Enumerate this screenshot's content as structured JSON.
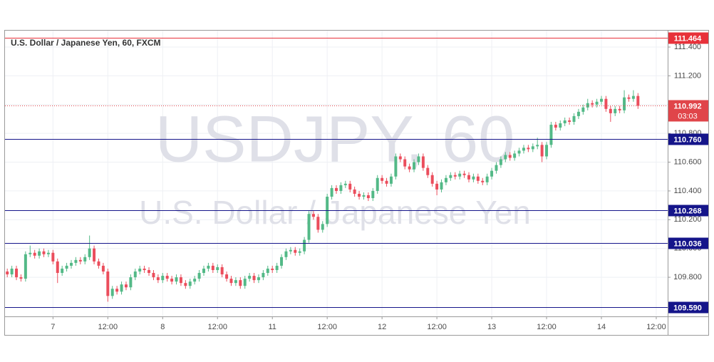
{
  "chart_data": {
    "type": "candlestick",
    "title": "U.S. Dollar / Japanese Yen, 60, FXCM",
    "watermark_symbol": "USDJPY, 60",
    "watermark_name": "U.S. Dollar / Japanese Yen",
    "up_color": "#53b987",
    "down_color": "#eb4d5c",
    "grid": true,
    "xlim": [
      -0.5,
      144.5
    ],
    "ylim": [
      109.528,
      111.514
    ],
    "xticks": [
      {
        "value": 10,
        "label": "7"
      },
      {
        "value": 22,
        "label": "12:00"
      },
      {
        "value": 34,
        "label": "8"
      },
      {
        "value": 46,
        "label": "12:00"
      },
      {
        "value": 58,
        "label": "11"
      },
      {
        "value": 70,
        "label": "12:00"
      },
      {
        "value": 82,
        "label": "12"
      },
      {
        "value": 94,
        "label": "12:00"
      },
      {
        "value": 106,
        "label": "13"
      },
      {
        "value": 118,
        "label": "12:00"
      },
      {
        "value": 130,
        "label": "14"
      },
      {
        "value": 142,
        "label": "12:00"
      }
    ],
    "yticks": [
      {
        "value": 109.8,
        "label": "109.800"
      },
      {
        "value": 110,
        "label": "110.000"
      },
      {
        "value": 110.2,
        "label": "110.200"
      },
      {
        "value": 110.4,
        "label": "110.400"
      },
      {
        "value": 110.6,
        "label": "110.600"
      },
      {
        "value": 110.8,
        "label": "110.800"
      },
      {
        "value": 111,
        "label": "111.000"
      },
      {
        "value": 111.2,
        "label": "111.200"
      },
      {
        "value": 111.4,
        "label": "111.400"
      }
    ],
    "levels": [
      {
        "value": 111.464,
        "label": "111.464",
        "color": "#e8313a"
      },
      {
        "value": 110.76,
        "label": "110.760",
        "color": "#15158a"
      },
      {
        "value": 110.268,
        "label": "110.268",
        "color": "#15158a"
      },
      {
        "value": 110.036,
        "label": "110.036",
        "color": "#15158a"
      },
      {
        "value": 109.59,
        "label": "109.590",
        "color": "#15158a"
      }
    ],
    "current_price": {
      "value": 110.992,
      "label": "110.992",
      "countdown": "03:03",
      "color": "#e0454a"
    },
    "open": [
      109.84,
      109.82,
      109.86,
      109.8,
      109.79,
      109.96,
      109.97,
      109.95,
      109.98,
      109.96,
      109.97,
      109.91,
      109.83,
      109.86,
      109.88,
      109.9,
      109.92,
      109.91,
      109.94,
      110.0,
      109.91,
      109.88,
      109.84,
      109.67,
      109.72,
      109.7,
      109.75,
      109.73,
      109.8,
      109.84,
      109.86,
      109.85,
      109.83,
      109.8,
      109.78,
      109.81,
      109.79,
      109.77,
      109.8,
      109.76,
      109.74,
      109.77,
      109.79,
      109.83,
      109.86,
      109.88,
      109.85,
      109.87,
      109.82,
      109.79,
      109.76,
      109.78,
      109.74,
      109.79,
      109.81,
      109.78,
      109.8,
      109.83,
      109.86,
      109.85,
      109.88,
      109.94,
      109.98,
      109.99,
      109.97,
      109.98,
      110.06,
      110.24,
      110.22,
      110.13,
      110.17,
      110.36,
      110.42,
      110.4,
      110.44,
      110.45,
      110.41,
      110.38,
      110.36,
      110.37,
      110.35,
      110.4,
      110.49,
      110.47,
      110.45,
      110.5,
      110.64,
      110.62,
      110.57,
      110.55,
      110.6,
      110.64,
      110.56,
      110.51,
      110.45,
      110.41,
      110.46,
      110.49,
      110.51,
      110.5,
      110.52,
      110.51,
      110.48,
      110.5,
      110.47,
      110.46,
      110.5,
      110.54,
      110.58,
      110.62,
      110.65,
      110.63,
      110.66,
      110.68,
      110.7,
      110.69,
      110.71,
      110.72,
      110.64,
      110.72,
      110.86,
      110.84,
      110.87,
      110.89,
      110.88,
      110.92,
      110.95,
      110.98,
      111.01,
      111.0,
      111.02,
      111.04,
      110.97,
      110.94,
      110.97,
      110.96,
      111.05,
      111.04,
      111.06
    ],
    "high": [
      109.86,
      109.88,
      109.88,
      109.82,
      109.98,
      110.02,
      109.99,
      110.0,
      110.0,
      109.99,
      109.99,
      109.93,
      109.88,
      109.9,
      109.92,
      109.94,
      109.94,
      109.96,
      110.09,
      110.02,
      109.93,
      109.9,
      109.86,
      109.74,
      109.74,
      109.77,
      109.77,
      109.82,
      109.86,
      109.88,
      109.88,
      109.87,
      109.85,
      109.82,
      109.83,
      109.83,
      109.81,
      109.82,
      109.82,
      109.78,
      109.79,
      109.81,
      109.85,
      109.88,
      109.9,
      109.9,
      109.89,
      109.89,
      109.84,
      109.81,
      109.8,
      109.8,
      109.81,
      109.83,
      109.83,
      109.82,
      109.85,
      109.88,
      109.88,
      109.9,
      109.96,
      110.0,
      110.01,
      110.01,
      110.0,
      110.08,
      110.26,
      110.26,
      110.24,
      110.19,
      110.38,
      110.44,
      110.44,
      110.46,
      110.47,
      110.47,
      110.43,
      110.4,
      110.39,
      110.39,
      110.42,
      110.51,
      110.51,
      110.49,
      110.52,
      110.66,
      110.66,
      110.64,
      110.59,
      110.62,
      110.66,
      110.66,
      110.58,
      110.53,
      110.47,
      110.48,
      110.51,
      110.53,
      110.53,
      110.54,
      110.54,
      110.53,
      110.52,
      110.52,
      110.49,
      110.52,
      110.56,
      110.6,
      110.64,
      110.67,
      110.67,
      110.68,
      110.7,
      110.72,
      110.72,
      110.73,
      110.77,
      110.74,
      110.74,
      110.88,
      110.88,
      110.89,
      110.91,
      110.91,
      110.94,
      110.97,
      111.0,
      111.04,
      111.03,
      111.04,
      111.06,
      111.06,
      110.99,
      110.99,
      110.99,
      111.1,
      111.07,
      111.1,
      111.08
    ],
    "low": [
      109.8,
      109.8,
      109.78,
      109.77,
      109.77,
      109.94,
      109.93,
      109.93,
      109.94,
      109.94,
      109.89,
      109.76,
      109.81,
      109.84,
      109.86,
      109.88,
      109.89,
      109.89,
      109.92,
      109.89,
      109.86,
      109.82,
      109.63,
      109.65,
      109.68,
      109.68,
      109.71,
      109.71,
      109.78,
      109.82,
      109.83,
      109.81,
      109.78,
      109.76,
      109.76,
      109.77,
      109.75,
      109.75,
      109.74,
      109.72,
      109.72,
      109.75,
      109.77,
      109.81,
      109.84,
      109.83,
      109.83,
      109.8,
      109.77,
      109.74,
      109.74,
      109.72,
      109.72,
      109.77,
      109.76,
      109.76,
      109.78,
      109.81,
      109.83,
      109.83,
      109.86,
      109.92,
      109.96,
      109.95,
      109.95,
      109.96,
      110.04,
      110.2,
      110.11,
      110.11,
      110.15,
      110.34,
      110.38,
      110.38,
      110.42,
      110.39,
      110.36,
      110.34,
      110.34,
      110.33,
      110.33,
      110.38,
      110.45,
      110.43,
      110.43,
      110.48,
      110.6,
      110.55,
      110.53,
      110.53,
      110.58,
      110.54,
      110.49,
      110.43,
      110.37,
      110.39,
      110.44,
      110.47,
      110.48,
      110.48,
      110.49,
      110.46,
      110.46,
      110.45,
      110.44,
      110.44,
      110.48,
      110.52,
      110.56,
      110.6,
      110.61,
      110.61,
      110.64,
      110.66,
      110.67,
      110.67,
      110.69,
      110.6,
      110.62,
      110.7,
      110.82,
      110.82,
      110.85,
      110.86,
      110.86,
      110.9,
      110.93,
      110.96,
      110.98,
      110.98,
      111.0,
      110.95,
      110.88,
      110.92,
      110.94,
      110.94,
      111.02,
      111.02,
      110.97
    ],
    "close": [
      109.82,
      109.86,
      109.8,
      109.79,
      109.96,
      109.97,
      109.95,
      109.98,
      109.96,
      109.97,
      109.91,
      109.83,
      109.86,
      109.88,
      109.9,
      109.92,
      109.91,
      109.94,
      110.0,
      109.91,
      109.88,
      109.84,
      109.67,
      109.72,
      109.7,
      109.75,
      109.73,
      109.8,
      109.84,
      109.86,
      109.85,
      109.83,
      109.8,
      109.78,
      109.81,
      109.79,
      109.77,
      109.8,
      109.76,
      109.74,
      109.77,
      109.79,
      109.83,
      109.86,
      109.88,
      109.85,
      109.87,
      109.82,
      109.79,
      109.76,
      109.78,
      109.74,
      109.79,
      109.81,
      109.78,
      109.8,
      109.83,
      109.86,
      109.85,
      109.88,
      109.94,
      109.98,
      109.99,
      109.97,
      109.98,
      110.06,
      110.24,
      110.22,
      110.13,
      110.17,
      110.36,
      110.42,
      110.4,
      110.44,
      110.45,
      110.41,
      110.38,
      110.36,
      110.37,
      110.35,
      110.4,
      110.49,
      110.47,
      110.45,
      110.5,
      110.64,
      110.62,
      110.57,
      110.55,
      110.6,
      110.64,
      110.56,
      110.51,
      110.45,
      110.41,
      110.46,
      110.49,
      110.51,
      110.5,
      110.52,
      110.51,
      110.48,
      110.5,
      110.47,
      110.46,
      110.5,
      110.54,
      110.58,
      110.62,
      110.65,
      110.63,
      110.66,
      110.68,
      110.7,
      110.69,
      110.71,
      110.72,
      110.64,
      110.72,
      110.86,
      110.84,
      110.87,
      110.89,
      110.88,
      110.92,
      110.95,
      110.98,
      111.01,
      111.0,
      111.02,
      111.04,
      110.97,
      110.94,
      110.97,
      110.96,
      111.05,
      111.04,
      111.06,
      110.992
    ]
  }
}
